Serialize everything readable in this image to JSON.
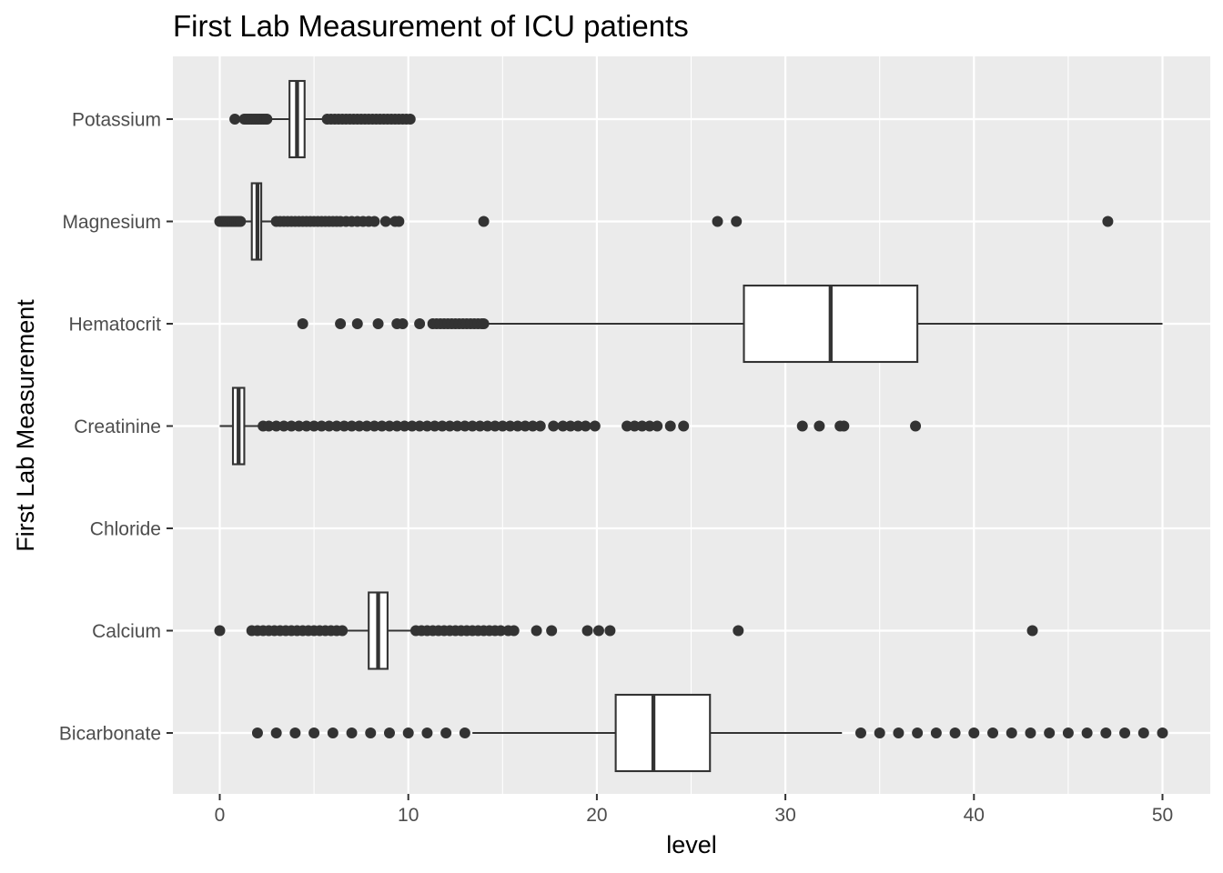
{
  "chart_data": {
    "type": "boxplot",
    "orientation": "horizontal",
    "title": "First Lab Measurement of ICU patients",
    "xlabel": "level",
    "ylabel": "First Lab Measurement",
    "xlim": [
      -2.5,
      52.5
    ],
    "xticks": [
      0,
      10,
      20,
      30,
      40,
      50
    ],
    "grid": true,
    "legend": "none",
    "colors": {
      "panel": "#ebebeb",
      "grid_major": "#ffffff",
      "box_fill": "#ffffff",
      "stroke": "#333333",
      "tick_text": "#4d4d4d",
      "title_text": "#000000"
    },
    "categories": [
      "Potassium",
      "Magnesium",
      "Hematocrit",
      "Creatinine",
      "Chloride",
      "Calcium",
      "Bicarbonate"
    ],
    "boxes": [
      {
        "name": "Potassium",
        "q1": 3.7,
        "median": 4.1,
        "q3": 4.5,
        "whisker_low": 2.6,
        "whisker_high": 5.6,
        "outliers": [
          0.8,
          1.3,
          1.4,
          1.5,
          1.6,
          1.7,
          1.8,
          1.9,
          2.0,
          2.1,
          2.2,
          2.3,
          2.4,
          2.5,
          5.7,
          5.9,
          6.1,
          6.3,
          6.5,
          6.7,
          6.9,
          7.1,
          7.3,
          7.5,
          7.7,
          7.9,
          8.1,
          8.3,
          8.5,
          8.7,
          8.9,
          9.1,
          9.3,
          9.5,
          9.7,
          9.9,
          10.1
        ]
      },
      {
        "name": "Magnesium",
        "q1": 1.7,
        "median": 2.0,
        "q3": 2.2,
        "whisker_low": 1.3,
        "whisker_high": 2.9,
        "outliers": [
          0.0,
          0.1,
          0.2,
          0.3,
          0.4,
          0.5,
          0.6,
          0.7,
          0.8,
          0.9,
          1.0,
          1.1,
          3.0,
          3.2,
          3.4,
          3.6,
          3.8,
          4.0,
          4.2,
          4.4,
          4.6,
          4.8,
          5.0,
          5.2,
          5.4,
          5.6,
          5.8,
          6.0,
          6.2,
          6.4,
          6.7,
          7.0,
          7.3,
          7.6,
          7.9,
          8.2,
          8.8,
          9.3,
          9.5,
          14.0,
          26.4,
          27.4,
          47.1
        ]
      },
      {
        "name": "Hematocrit",
        "q1": 27.8,
        "median": 32.4,
        "q3": 37.0,
        "whisker_low": 14.1,
        "whisker_high": 50.0,
        "outliers": [
          4.4,
          6.4,
          7.3,
          8.4,
          9.4,
          9.7,
          10.6,
          11.3,
          11.5,
          11.7,
          11.9,
          12.1,
          12.3,
          12.5,
          12.7,
          12.9,
          13.1,
          13.3,
          13.5,
          13.7,
          13.9,
          14.0
        ]
      },
      {
        "name": "Creatinine",
        "q1": 0.7,
        "median": 1.0,
        "q3": 1.3,
        "whisker_low": 0.0,
        "whisker_high": 2.2,
        "outliers": [
          2.3,
          2.6,
          3.0,
          3.4,
          3.8,
          4.2,
          4.6,
          5.0,
          5.4,
          5.8,
          6.2,
          6.6,
          7.0,
          7.4,
          7.8,
          8.2,
          8.6,
          9.0,
          9.4,
          9.8,
          10.2,
          10.6,
          11.0,
          11.4,
          11.8,
          12.2,
          12.6,
          13.0,
          13.4,
          13.8,
          14.2,
          14.6,
          15.0,
          15.4,
          15.8,
          16.2,
          16.6,
          17.0,
          17.7,
          18.2,
          18.6,
          19.0,
          19.4,
          19.9,
          21.6,
          22.0,
          22.4,
          22.8,
          23.2,
          23.9,
          24.6,
          30.9,
          31.8,
          32.9,
          33.1,
          36.9
        ]
      },
      {
        "name": "Chloride"
      },
      {
        "name": "Calcium",
        "q1": 7.9,
        "median": 8.4,
        "q3": 8.9,
        "whisker_low": 6.6,
        "whisker_high": 10.3,
        "outliers": [
          0.0,
          1.7,
          2.0,
          2.3,
          2.6,
          2.9,
          3.2,
          3.5,
          3.8,
          4.1,
          4.4,
          4.7,
          5.0,
          5.3,
          5.6,
          5.9,
          6.2,
          6.5,
          10.4,
          10.7,
          11.0,
          11.3,
          11.6,
          11.9,
          12.2,
          12.5,
          12.8,
          13.1,
          13.4,
          13.7,
          14.0,
          14.3,
          14.6,
          14.9,
          15.3,
          15.6,
          16.8,
          17.6,
          19.5,
          20.1,
          20.7,
          27.5,
          43.1
        ]
      },
      {
        "name": "Bicarbonate",
        "q1": 21,
        "median": 23,
        "q3": 26,
        "whisker_low": 13.4,
        "whisker_high": 33,
        "outliers": [
          2,
          3,
          4,
          5,
          6,
          7,
          8,
          9,
          10,
          11,
          12,
          13,
          34,
          35,
          36,
          37,
          38,
          39,
          40,
          41,
          42,
          43,
          44,
          45,
          46,
          47,
          48,
          49,
          50
        ]
      }
    ]
  }
}
